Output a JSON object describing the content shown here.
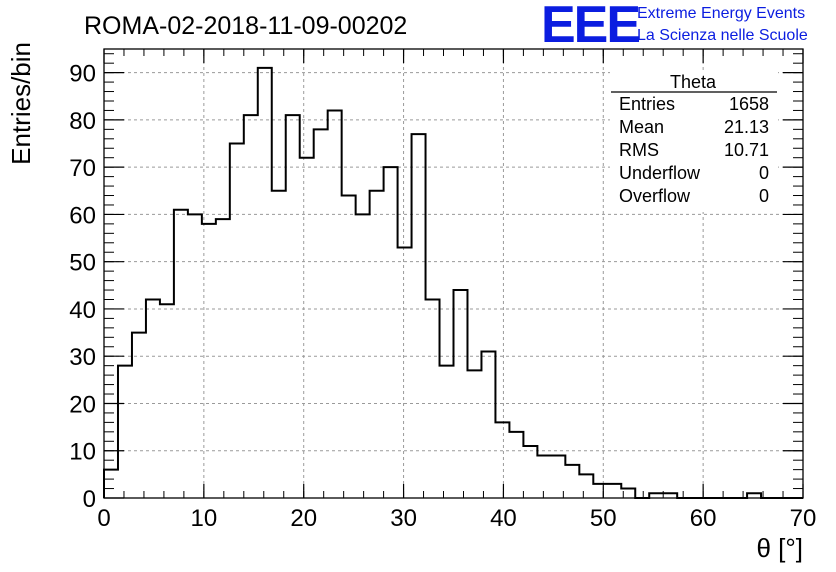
{
  "chart_data": {
    "type": "bar",
    "title": "ROMA-02-2018-11-09-00202",
    "xlabel": "θ [°]",
    "ylabel": "Entries/bin",
    "xlim": [
      0,
      70
    ],
    "ylim": [
      0,
      95
    ],
    "x_ticks": [
      0,
      10,
      20,
      30,
      40,
      50,
      60,
      70
    ],
    "y_ticks": [
      0,
      10,
      20,
      30,
      40,
      50,
      60,
      70,
      80,
      90
    ],
    "grid": true,
    "bin_width": 1.4,
    "bin_edges_start": 0,
    "values": [
      6,
      28,
      35,
      42,
      41,
      61,
      60,
      58,
      59,
      75,
      81,
      91,
      65,
      81,
      72,
      78,
      82,
      64,
      60,
      65,
      70,
      53,
      77,
      42,
      28,
      44,
      27,
      31,
      16,
      14,
      11,
      9,
      9,
      7,
      5,
      3,
      3,
      2,
      0,
      1,
      1,
      0,
      0,
      0,
      0,
      0,
      1,
      0,
      0,
      0
    ],
    "color": "#000000"
  },
  "stats_box": {
    "name": "Theta",
    "rows": [
      {
        "label": "Entries",
        "value": "1658"
      },
      {
        "label": "Mean",
        "value": "21.13"
      },
      {
        "label": "RMS",
        "value": "10.71"
      },
      {
        "label": "Underflow",
        "value": "0"
      },
      {
        "label": "Overflow",
        "value": "0"
      }
    ]
  },
  "logo": {
    "mark": "EEE",
    "line1": "Extreme Energy Events",
    "line2": "La Scienza nelle Scuole",
    "color": "#0b1de0"
  }
}
